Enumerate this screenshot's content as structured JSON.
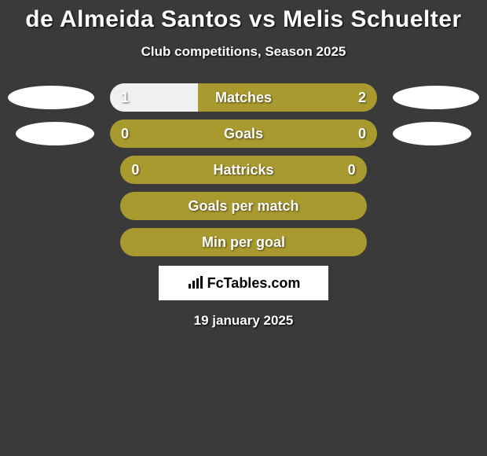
{
  "title": "de Almeida Santos vs Melis Schuelter",
  "subtitle": "Club competitions, Season 2025",
  "date": "19 january 2025",
  "logo_text": "FcTables.com",
  "colors": {
    "background": "#3a3a3a",
    "ellipse": "#ffffff",
    "bar_left": "#f0f0f0",
    "bar_right": "#a89a2f",
    "text": "#ffffff"
  },
  "stats": [
    {
      "label": "Matches",
      "left_value": "1",
      "right_value": "2",
      "left_pct": 33,
      "show_left_ellipse": true,
      "show_right_ellipse": true,
      "ellipse_narrow": false
    },
    {
      "label": "Goals",
      "left_value": "0",
      "right_value": "0",
      "left_pct": 0,
      "show_left_ellipse": true,
      "show_right_ellipse": true,
      "ellipse_narrow": true
    },
    {
      "label": "Hattricks",
      "left_value": "0",
      "right_value": "0",
      "left_pct": 0,
      "show_left_ellipse": false,
      "show_right_ellipse": false,
      "ellipse_narrow": false
    },
    {
      "label": "Goals per match",
      "left_value": "",
      "right_value": "",
      "left_pct": 0,
      "show_left_ellipse": false,
      "show_right_ellipse": false,
      "ellipse_narrow": false
    },
    {
      "label": "Min per goal",
      "left_value": "",
      "right_value": "",
      "left_pct": 0,
      "show_left_ellipse": false,
      "show_right_ellipse": false,
      "ellipse_narrow": false
    }
  ]
}
